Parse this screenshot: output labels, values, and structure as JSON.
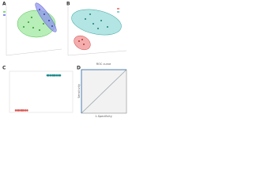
{
  "panels": [
    {
      "label": "A"
    },
    {
      "label": "B"
    },
    {
      "label": "C"
    },
    {
      "label": "D"
    }
  ],
  "chart_data": [
    {
      "type": "scatter",
      "xlim": [
        0,
        1
      ],
      "ylim": [
        0,
        1
      ],
      "series": [
        {
          "color": "#d9534f",
          "x": [
            0.1,
            0.13,
            0.15,
            0.18,
            0.2,
            0.22,
            0.25,
            0.28
          ],
          "values": [
            0.05,
            0.05,
            0.05,
            0.05,
            0.05,
            0.05,
            0.05,
            0.05
          ]
        },
        {
          "color": "#1a8a8a",
          "x": [
            0.6,
            0.62,
            0.65,
            0.68,
            0.7,
            0.72,
            0.75,
            0.78,
            0.8
          ],
          "values": [
            0.9,
            0.9,
            0.9,
            0.9,
            0.9,
            0.9,
            0.9,
            0.9,
            0.9
          ]
        }
      ]
    },
    {
      "type": "line",
      "title": "ROC curve",
      "xlabel": "1-Specificity",
      "ylabel": "Sensitivity",
      "xlim": [
        0,
        1
      ],
      "ylim": [
        0,
        1
      ],
      "series": [
        {
          "color": "#9aa6ad",
          "x": [
            0,
            1
          ],
          "values": [
            0,
            1
          ]
        },
        {
          "color": "#2f6fb0",
          "x": [
            0,
            0,
            1
          ],
          "values": [
            0,
            1,
            1
          ]
        }
      ]
    }
  ]
}
